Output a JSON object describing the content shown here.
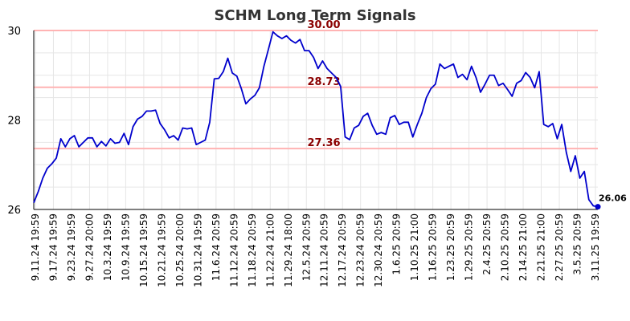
{
  "chart_data": {
    "type": "line",
    "title": "SCHM Long Term Signals",
    "xlabel": "",
    "ylabel": "",
    "ylim": [
      26,
      30
    ],
    "yticks": [
      26,
      28,
      30
    ],
    "grid": true,
    "xtick_labels": [
      "9.11.24 19:59",
      "9.17.24 19:59",
      "9.23.24 19:59",
      "9.27.24 20:00",
      "10.3.24 19:59",
      "10.9.24 19:59",
      "10.15.24 19:59",
      "10.21.24 19:59",
      "10.25.24 20:00",
      "10.31.24 19:59",
      "11.6.24 20:59",
      "11.12.24 20:59",
      "11.18.24 20:59",
      "11.22.24 21:00",
      "11.29.24 18:00",
      "12.5.24 20:59",
      "12.11.24 20:59",
      "12.17.24 20:59",
      "12.23.24 20:59",
      "12.30.24 20:59",
      "1.6.25 20:59",
      "1.10.25 21:00",
      "1.16.25 20:59",
      "1.23.25 20:59",
      "1.29.25 20:59",
      "2.4.25 20:59",
      "2.10.25 20:59",
      "2.14.25 21:00",
      "2.21.25 21:00",
      "2.27.25 20:59",
      "3.5.25 20:59",
      "3.11.25 19:59"
    ],
    "series": [
      {
        "values": [
          26.15,
          26.4,
          26.7,
          26.92,
          27.02,
          27.15,
          27.58,
          27.4,
          27.58,
          27.65,
          27.4,
          27.5,
          27.6,
          27.6,
          27.4,
          27.52,
          27.42,
          27.58,
          27.48,
          27.5,
          27.7,
          27.45,
          27.85,
          28.02,
          28.08,
          28.2,
          28.2,
          28.22,
          27.92,
          27.78,
          27.6,
          27.65,
          27.55,
          27.82,
          27.8,
          27.82,
          27.45,
          27.5,
          27.55,
          27.95,
          28.92,
          28.93,
          29.08,
          29.38,
          29.05,
          28.98,
          28.7,
          28.36,
          28.47,
          28.55,
          28.72,
          29.2,
          29.58,
          29.97,
          29.88,
          29.82,
          29.88,
          29.78,
          29.72,
          29.8,
          29.55,
          29.55,
          29.4,
          29.15,
          29.32,
          29.15,
          29.05,
          28.95,
          28.75,
          27.62,
          27.56,
          27.82,
          27.88,
          28.08,
          28.15,
          27.88,
          27.68,
          27.72,
          27.68,
          28.05,
          28.1,
          27.9,
          27.95,
          27.95,
          27.62,
          27.9,
          28.15,
          28.5,
          28.7,
          28.8,
          29.25,
          29.15,
          29.2,
          29.25,
          28.95,
          29.02,
          28.9,
          29.2,
          28.95,
          28.62,
          28.8,
          29.0,
          29.0,
          28.77,
          28.82,
          28.68,
          28.53,
          28.82,
          28.88,
          29.06,
          28.95,
          28.72,
          29.08,
          27.9,
          27.85,
          27.92,
          27.58,
          27.9,
          27.28,
          26.85,
          27.2,
          26.7,
          26.85,
          26.22,
          26.08,
          26.06
        ],
        "color": "#0000cc"
      }
    ],
    "levels": [
      {
        "value": 30.0,
        "label": "30.00",
        "color": "#ffb3b3"
      },
      {
        "value": 28.73,
        "label": "28.73",
        "color": "#ffb3b3"
      },
      {
        "value": 27.36,
        "label": "27.36",
        "color": "#ffb3b3"
      }
    ],
    "last_value": {
      "value": 26.06,
      "label": "26.06"
    }
  }
}
